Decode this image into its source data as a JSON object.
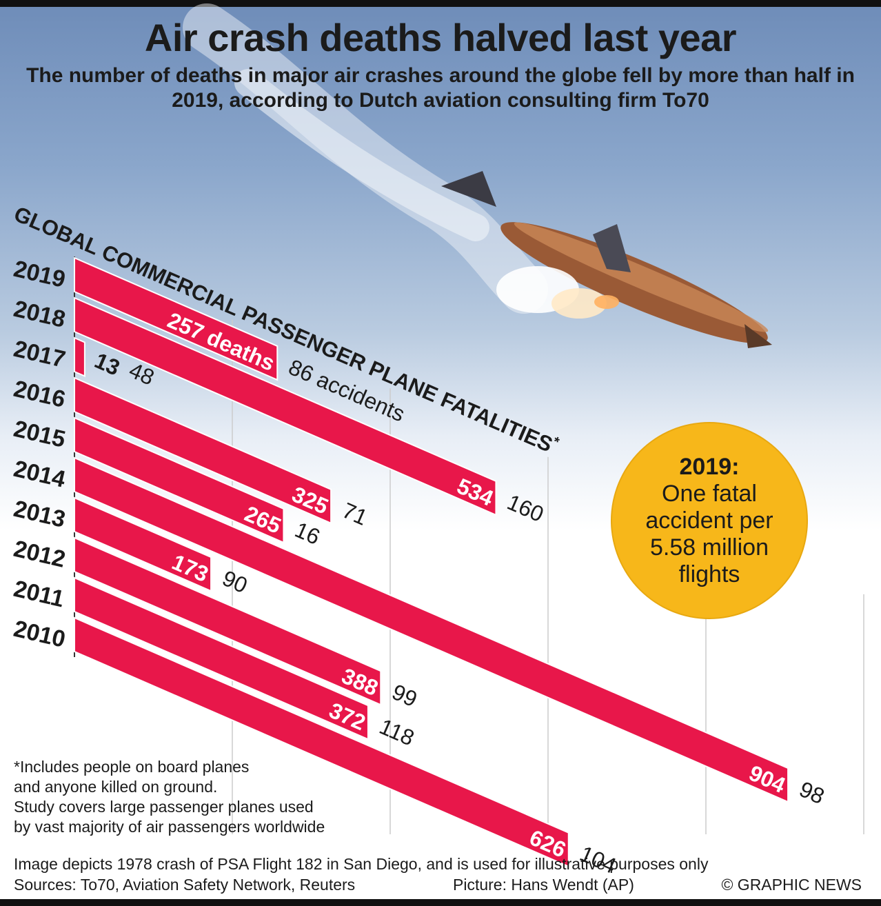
{
  "title": "Air crash deaths halved last year",
  "subtitle": "The number of deaths in major air crashes around the globe fell by more than half in 2019, according to Dutch aviation consulting firm To70",
  "chart_data": {
    "type": "bar",
    "title": "GLOBAL COMMERCIAL PASSENGER PLANE FATALITIES",
    "title_mark": "*",
    "orientation": "horizontal",
    "categories": [
      "2019",
      "2018",
      "2017",
      "2016",
      "2015",
      "2014",
      "2013",
      "2012",
      "2011",
      "2010"
    ],
    "series": [
      {
        "values": [
          257,
          534,
          13,
          325,
          265,
          904,
          173,
          388,
          372,
          626
        ]
      },
      {
        "values": [
          86,
          160,
          48,
          71,
          16,
          98,
          90,
          99,
          118,
          104
        ]
      }
    ],
    "value_labels": [
      "257 deaths",
      "534",
      "13",
      "325",
      "265",
      "904",
      "173",
      "388",
      "372",
      "626"
    ],
    "accident_labels": [
      "86 accidents",
      "160",
      "48",
      "71",
      "16",
      "98",
      "90",
      "99",
      "118",
      "104"
    ],
    "xlim": [
      0,
      1000
    ],
    "grid": true,
    "bar_color": "#e8174a"
  },
  "callout": {
    "year": "2019:",
    "text": "One fatal accident per 5.58 million flights"
  },
  "footnote": [
    "*Includes people on board planes",
    "and anyone killed on ground.",
    "Study covers large passenger planes used",
    "by vast majority of air passengers worldwide"
  ],
  "image_note": "Image depicts 1978 crash of PSA Flight 182 in San Diego, and is used for illustrative purposes only",
  "sources": "Sources: To70, Aviation Safety Network, Reuters",
  "picture_credit": "Picture: Hans Wendt (AP)",
  "copyright": "© GRAPHIC NEWS"
}
